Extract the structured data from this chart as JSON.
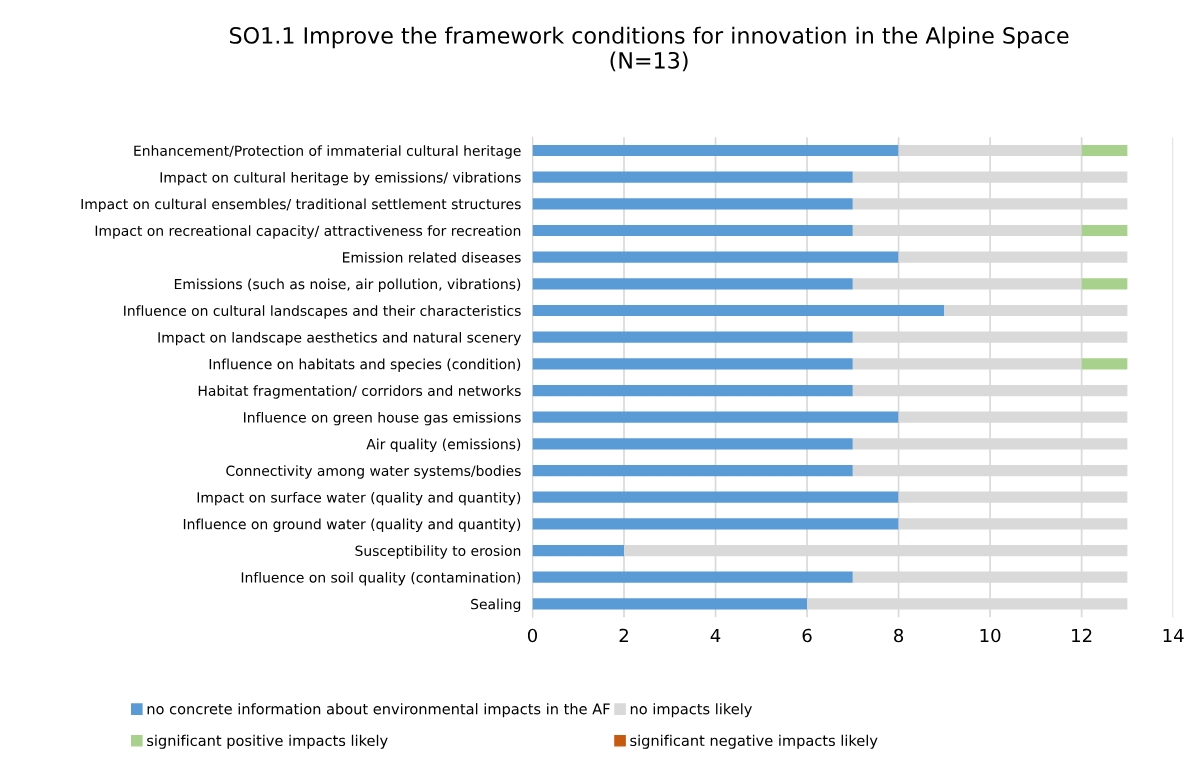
{
  "chart_data": {
    "type": "bar",
    "orientation": "horizontal",
    "stacked": true,
    "title": "SO1.1 Improve the framework conditions for innovation in the Alpine Space\n(N=13)",
    "categories": [
      "Enhancement/Protection of immaterial cultural heritage",
      "Impact on cultural heritage by emissions/ vibrations",
      "Impact on cultural ensembles/ traditional settlement structures",
      "Impact on recreational capacity/ attractiveness for recreation",
      "Emission related diseases",
      "Emissions (such as noise, air pollution, vibrations)",
      "Influence on cultural landscapes and their characteristics",
      "Impact on landscape aesthetics and natural scenery",
      "Influence on habitats and species (condition)",
      "Habitat fragmentation/ corridors and networks",
      "Influence on green house gas emissions",
      "Air quality (emissions)",
      "Connectivity among water systems/bodies",
      "Impact on surface water (quality and quantity)",
      "Influence on ground water (quality and quantity)",
      "Susceptibility to erosion",
      "Influence on soil quality (contamination)",
      "Sealing"
    ],
    "series": [
      {
        "name": "no concrete information about environmental impacts in the AF",
        "color": "#5b9bd5",
        "values": [
          8,
          7,
          7,
          7,
          8,
          7,
          9,
          7,
          7,
          7,
          8,
          7,
          7,
          8,
          8,
          2,
          7,
          6
        ]
      },
      {
        "name": "no impacts likely",
        "color": "#d9d9d9",
        "values": [
          4,
          6,
          6,
          5,
          5,
          5,
          4,
          6,
          5,
          6,
          5,
          6,
          6,
          5,
          5,
          11,
          6,
          7
        ]
      },
      {
        "name": "significant positive impacts likely",
        "color": "#a9d18e",
        "values": [
          1,
          0,
          0,
          1,
          0,
          1,
          0,
          0,
          1,
          0,
          0,
          0,
          0,
          0,
          0,
          0,
          0,
          0
        ]
      },
      {
        "name": "significant negative impacts likely",
        "color": "#c55a11",
        "values": [
          0,
          0,
          0,
          0,
          0,
          0,
          0,
          0,
          0,
          0,
          0,
          0,
          0,
          0,
          0,
          0,
          0,
          0
        ]
      }
    ],
    "xlim": [
      0,
      14
    ],
    "xticks": [
      0,
      2,
      4,
      6,
      8,
      10,
      12,
      14
    ],
    "grid": "x",
    "legend": "bottom"
  }
}
